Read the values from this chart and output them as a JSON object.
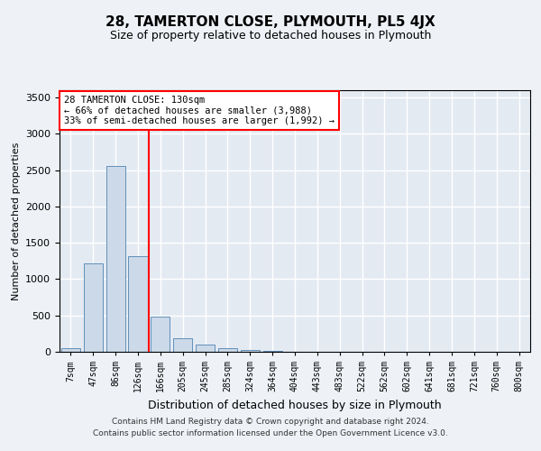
{
  "title": "28, TAMERTON CLOSE, PLYMOUTH, PL5 4JX",
  "subtitle": "Size of property relative to detached houses in Plymouth",
  "xlabel": "Distribution of detached houses by size in Plymouth",
  "ylabel": "Number of detached properties",
  "categories": [
    "7sqm",
    "47sqm",
    "86sqm",
    "126sqm",
    "166sqm",
    "205sqm",
    "245sqm",
    "285sqm",
    "324sqm",
    "364sqm",
    "404sqm",
    "443sqm",
    "483sqm",
    "522sqm",
    "562sqm",
    "602sqm",
    "641sqm",
    "681sqm",
    "721sqm",
    "760sqm",
    "800sqm"
  ],
  "values": [
    50,
    1220,
    2560,
    1310,
    490,
    190,
    100,
    55,
    30,
    10,
    5,
    2,
    1,
    0,
    0,
    0,
    0,
    0,
    0,
    0,
    0
  ],
  "bar_color": "#ccd9e8",
  "bar_edge_color": "#6090bb",
  "ylim": [
    0,
    3600
  ],
  "yticks": [
    0,
    500,
    1000,
    1500,
    2000,
    2500,
    3000,
    3500
  ],
  "vline_bin_index": 3,
  "annotation_title": "28 TAMERTON CLOSE: 130sqm",
  "annotation_line1": "← 66% of detached houses are smaller (3,988)",
  "annotation_line2": "33% of semi-detached houses are larger (1,992) →",
  "footer_line1": "Contains HM Land Registry data © Crown copyright and database right 2024.",
  "footer_line2": "Contains public sector information licensed under the Open Government Licence v3.0.",
  "background_color": "#eef2f7",
  "plot_background": "#e4eaf2",
  "grid_color": "#ffffff"
}
